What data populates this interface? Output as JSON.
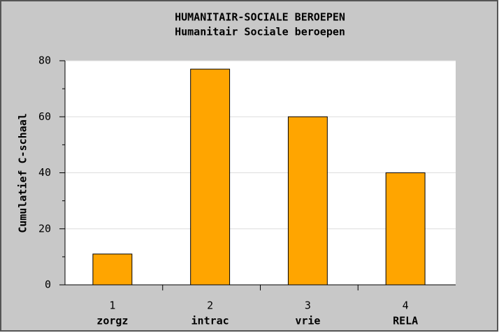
{
  "chart_data": {
    "type": "bar",
    "title": "HUMANITAIR-SOCIALE BEROEPEN",
    "subtitle": "Humanitair Sociale beroepen",
    "y_label": "Cumulatief C-schaal",
    "category_numbers": [
      1,
      2,
      3,
      4
    ],
    "categories": [
      "zorgz",
      "intrac",
      "vrie",
      "RELA"
    ],
    "values": [
      11,
      77,
      60,
      40
    ],
    "color": "#ffa500",
    "ylim": [
      0,
      80
    ],
    "yticks": [
      0,
      20,
      40,
      60,
      80
    ],
    "grid": true
  }
}
